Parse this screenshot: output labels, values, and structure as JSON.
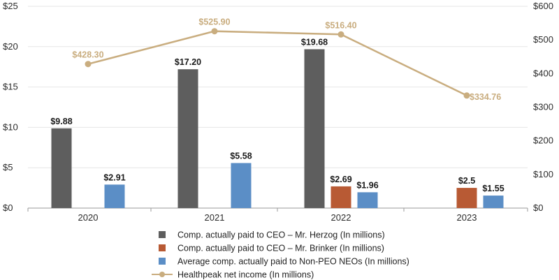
{
  "colors": {
    "herzog": "#5e5e5e",
    "brinker": "#b85a34",
    "non_peo": "#5b8ec6",
    "net_income": "#c9ad7f",
    "grid": "#e6e6e6",
    "axis": "#9a9a9a"
  },
  "chart_data": {
    "type": "bar",
    "categories": [
      "2020",
      "2021",
      "2022",
      "2023"
    ],
    "y_left": {
      "ticks": [
        "$0",
        "$5",
        "$10",
        "$15",
        "$20",
        "$25"
      ],
      "range": [
        0,
        25
      ]
    },
    "y_right": {
      "ticks": [
        "$0",
        "$100",
        "$200",
        "$300",
        "$400",
        "$500",
        "$600"
      ],
      "range": [
        0,
        600
      ]
    },
    "series": [
      {
        "name": "Comp. actually paid to CEO – Mr. Herzog (In millions)",
        "type": "bar",
        "color_key": "herzog",
        "values": [
          9.88,
          17.2,
          19.68,
          null
        ],
        "labels": [
          "$9.88",
          "$17.20",
          "$19.68",
          ""
        ]
      },
      {
        "name": "Comp. actually paid to CEO – Mr. Brinker (In millions)",
        "type": "bar",
        "color_key": "brinker",
        "values": [
          null,
          null,
          2.69,
          2.5
        ],
        "labels": [
          "",
          "",
          "$2.69",
          "$2.5"
        ]
      },
      {
        "name": "Average comp. actually paid to Non-PEO NEOs (In millions)",
        "type": "bar",
        "color_key": "non_peo",
        "values": [
          2.91,
          5.58,
          1.96,
          1.55
        ],
        "labels": [
          "$2.91",
          "$5.58",
          "$1.96",
          "$1.55"
        ]
      },
      {
        "name": "Healthpeak net income (In millions)",
        "type": "line",
        "axis": "right",
        "color_key": "net_income",
        "values": [
          428.3,
          525.9,
          516.4,
          334.76
        ],
        "labels": [
          "$428.30",
          "$525.90",
          "$516.40",
          "$334.76"
        ]
      }
    ],
    "grid": true,
    "legend_position": "bottom"
  }
}
